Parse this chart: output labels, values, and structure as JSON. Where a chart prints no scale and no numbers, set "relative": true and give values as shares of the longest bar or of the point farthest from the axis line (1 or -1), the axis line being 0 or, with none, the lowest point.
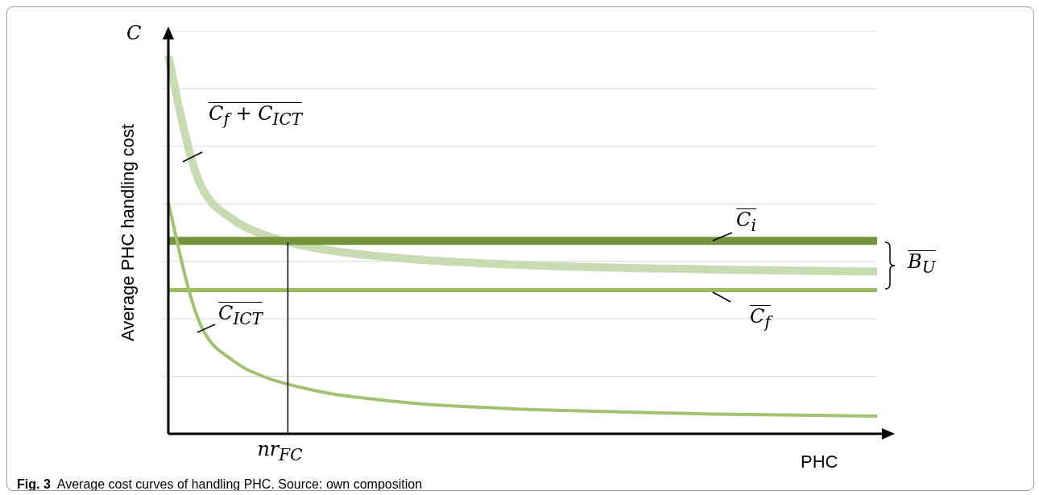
{
  "chart_data": {
    "type": "line",
    "relative": true,
    "ylabel": "Average PHC handling cost",
    "xlabel": "PHC",
    "grid": "y",
    "marker": "none",
    "line_style": "solid",
    "categories": [
      null,
      null,
      null,
      null,
      null,
      null,
      null,
      null,
      null,
      null,
      null,
      null,
      null,
      null,
      null,
      null,
      null,
      null,
      null,
      null,
      null,
      null,
      null
    ],
    "series": [
      {
        "name": "C$_{f}$ + C$_{ICT}$",
        "color": "#c9dbb2",
        "values": [
          1.0,
          0.658,
          0.567,
          0.525,
          0.501,
          0.485,
          0.474,
          0.466,
          0.459,
          0.454,
          0.45,
          0.446,
          0.443,
          0.441,
          0.439,
          0.437,
          0.436,
          0.434,
          0.433,
          0.432,
          0.431,
          0.43,
          0.429
        ]
      },
      {
        "name": "C$_{i}$",
        "color": "#77933c",
        "values": [
          0.51,
          0.51,
          0.51,
          0.51,
          0.51,
          0.51,
          0.51,
          0.51,
          0.51,
          0.51,
          0.51,
          0.51,
          0.51,
          0.51,
          0.51,
          0.51,
          0.51,
          0.51,
          0.51,
          0.51,
          0.51,
          0.51,
          0.51
        ]
      },
      {
        "name": "C$_{f}$",
        "color": "#9bbb59",
        "values": [
          0.38,
          0.38,
          0.38,
          0.38,
          0.38,
          0.38,
          0.38,
          0.38,
          0.38,
          0.38,
          0.38,
          0.38,
          0.38,
          0.38,
          0.38,
          0.38,
          0.38,
          0.38,
          0.38,
          0.38,
          0.38,
          0.38,
          0.38
        ]
      },
      {
        "name": "C$_{ICT}$",
        "color": "#a3c172",
        "values": [
          0.613,
          0.288,
          0.194,
          0.15,
          0.125,
          0.107,
          0.095,
          0.086,
          0.078,
          0.073,
          0.069,
          0.065,
          0.062,
          0.06,
          0.058,
          0.056,
          0.054,
          0.052,
          0.051,
          0.05,
          0.049,
          0.048,
          0.047
        ]
      }
    ],
    "annotations": [
      "C",
      "nr$_{FC}$",
      "B$_{U}$",
      "Fig. 3",
      "Average cost curves of handling PHC. Source: own composition"
    ]
  }
}
